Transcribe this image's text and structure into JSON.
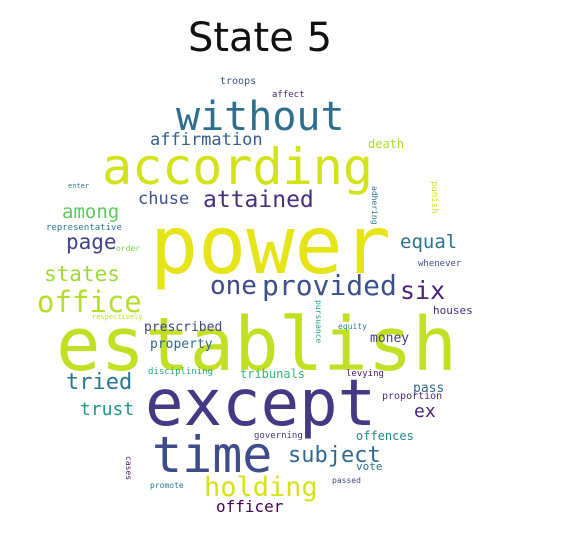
{
  "title": "State 5",
  "words": [
    {
      "text": "power",
      "color": "#e5e419"
    },
    {
      "text": "establish",
      "color": "#c2df23"
    },
    {
      "text": "except",
      "color": "#443983"
    },
    {
      "text": "according",
      "color": "#d2e21b"
    },
    {
      "text": "time",
      "color": "#3e4c8a"
    },
    {
      "text": "without",
      "color": "#2e6f8e"
    },
    {
      "text": "provided",
      "color": "#3b518b"
    },
    {
      "text": "office",
      "color": "#b5de2b"
    },
    {
      "text": "attained",
      "color": "#46307e"
    },
    {
      "text": "one",
      "color": "#3f4889"
    },
    {
      "text": "six",
      "color": "#482475"
    },
    {
      "text": "holding",
      "color": "#d5e21a"
    },
    {
      "text": "subject",
      "color": "#31688e"
    },
    {
      "text": "tried",
      "color": "#2a788e"
    },
    {
      "text": "among",
      "color": "#5ec962"
    },
    {
      "text": "page",
      "color": "#414487"
    },
    {
      "text": "states",
      "color": "#a0da39"
    },
    {
      "text": "affirmation",
      "color": "#35608d"
    },
    {
      "text": "chuse",
      "color": "#3b528b"
    },
    {
      "text": "equal",
      "color": "#2c728e"
    },
    {
      "text": "trust",
      "color": "#1f988b"
    },
    {
      "text": "ex",
      "color": "#482677"
    },
    {
      "text": "officer",
      "color": "#440154"
    },
    {
      "text": "death",
      "color": "#addc30"
    },
    {
      "text": "troops",
      "color": "#3b528b"
    },
    {
      "text": "affect",
      "color": "#481f70"
    },
    {
      "text": "representative",
      "color": "#2a788e"
    },
    {
      "text": "order",
      "color": "#7ad151"
    },
    {
      "text": "prescribed",
      "color": "#414487"
    },
    {
      "text": "property",
      "color": "#31688e"
    },
    {
      "text": "money",
      "color": "#433e85"
    },
    {
      "text": "houses",
      "color": "#482878"
    },
    {
      "text": "equity",
      "color": "#25838e"
    },
    {
      "text": "tribunals",
      "color": "#35b779"
    },
    {
      "text": "levying",
      "color": "#48186a"
    },
    {
      "text": "disciplining",
      "color": "#22a884"
    },
    {
      "text": "respectively",
      "color": "#c2df23"
    },
    {
      "text": "whenever",
      "color": "#3b528b"
    },
    {
      "text": "pass",
      "color": "#31688e"
    },
    {
      "text": "proportion",
      "color": "#472c7a"
    },
    {
      "text": "governing",
      "color": "#443a83"
    },
    {
      "text": "offences",
      "color": "#26828e"
    },
    {
      "text": "vote",
      "color": "#2c728e"
    },
    {
      "text": "passed",
      "color": "#3e4989"
    },
    {
      "text": "promote",
      "color": "#2a788e"
    },
    {
      "text": "enter",
      "color": "#2a788e"
    },
    {
      "text": "cases",
      "color": "#48186a"
    },
    {
      "text": "adhering",
      "color": "#2c728e"
    },
    {
      "text": "punish",
      "color": "#cde11d"
    },
    {
      "text": "pursuance",
      "color": "#1fa187"
    }
  ]
}
